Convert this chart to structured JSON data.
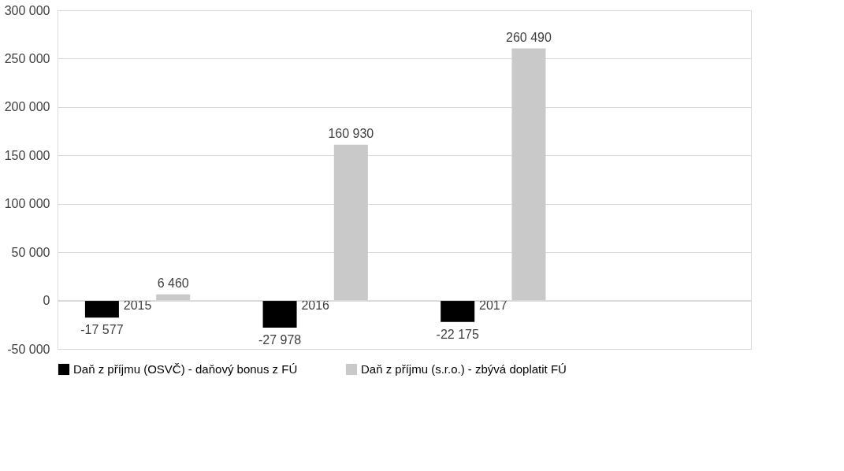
{
  "chart_data": {
    "type": "bar",
    "categories": [
      "2015",
      "2016",
      "2017",
      null
    ],
    "series": [
      {
        "name": "Daň z příjmu (OSVČ) - daňový bonus z FÚ",
        "color": "#000000",
        "values": [
          -17577,
          -27978,
          -22175,
          null
        ]
      },
      {
        "name": "Daň z příjmu (s.r.o.) - zbývá doplatit FÚ",
        "color": "#c9c9c9",
        "values": [
          6460,
          160930,
          260490,
          null
        ]
      }
    ],
    "ylim": [
      -50000,
      300000
    ],
    "yticks": [
      {
        "value": -50000,
        "label": "-50 000"
      },
      {
        "value": 0,
        "label": "0"
      },
      {
        "value": 50000,
        "label": "50 000"
      },
      {
        "value": 100000,
        "label": "100 000"
      },
      {
        "value": 150000,
        "label": "150 000"
      },
      {
        "value": 200000,
        "label": "200 000"
      },
      {
        "value": 250000,
        "label": "250 000"
      },
      {
        "value": 300000,
        "label": "300 000"
      }
    ],
    "grid": "y",
    "legend": "bottom",
    "data_labels": true
  }
}
